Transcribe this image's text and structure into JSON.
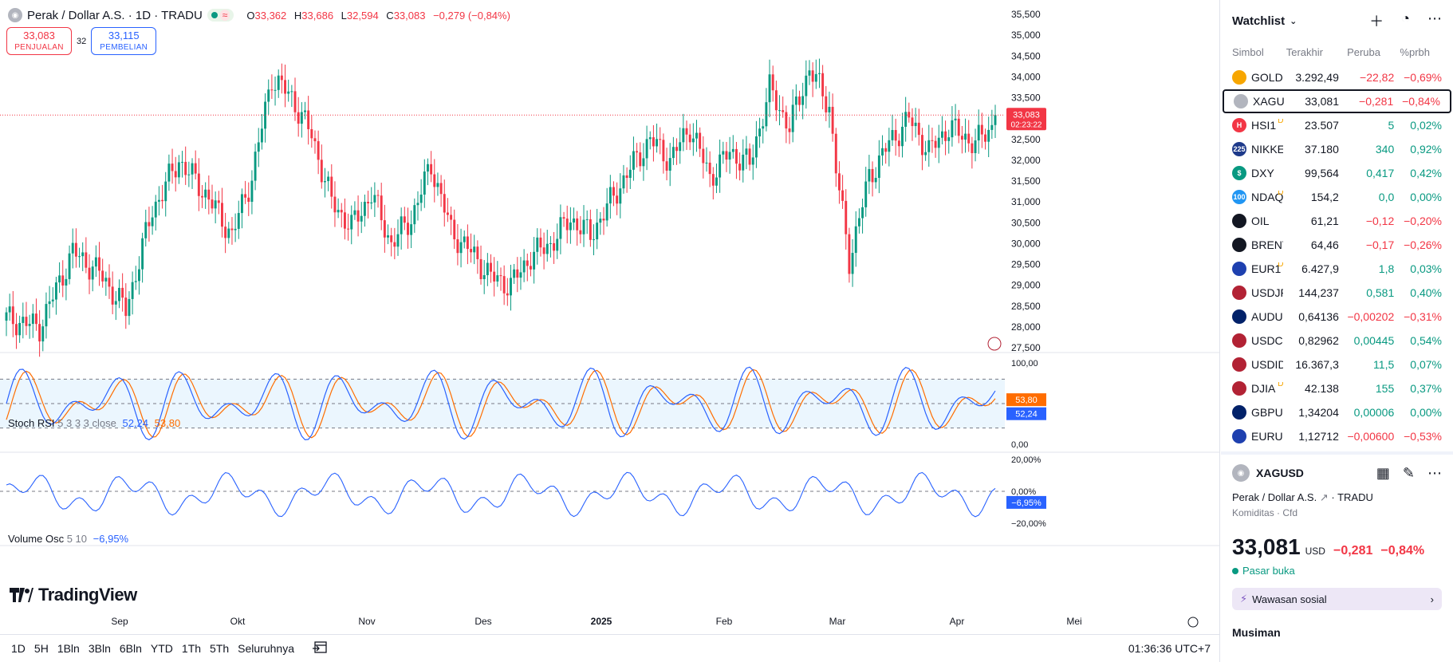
{
  "legend": {
    "title": "Perak / Dollar A.S. · 1D · TRADU",
    "open_k": "O",
    "open": "33,362",
    "high_k": "H",
    "high": "33,686",
    "low_k": "L",
    "low": "32,594",
    "close_k": "C",
    "close": "33,083",
    "change": "−0,279 (−0,84%)"
  },
  "trade": {
    "sell_price": "33,083",
    "sell_label": "PENJUALAN",
    "spread": "32",
    "buy_price": "33,115",
    "buy_label": "PEMBELIAN"
  },
  "price_axis": {
    "ticks": [
      "35,500",
      "35,000",
      "34,500",
      "34,000",
      "33,500",
      "33,000",
      "32,500",
      "32,000",
      "31,500",
      "31,000",
      "30,500",
      "30,000",
      "29,500",
      "29,000",
      "28,500",
      "28,000",
      "27,500"
    ],
    "last_price_label": "33,083",
    "countdown": "02:23:22"
  },
  "stoch_rsi": {
    "name": "Stoch RSI",
    "params": "5 3 3 3 close",
    "k_value": "52,24",
    "d_value": "53,80",
    "ticks": [
      "100,00",
      "0,00"
    ]
  },
  "volume_osc": {
    "name": "Volume Osc",
    "params": "5 10",
    "value": "−6,95%",
    "ticks": [
      "20,00%",
      "0,00%",
      "−20,00%"
    ]
  },
  "time_axis": {
    "labels": [
      "Sep",
      "Okt",
      "Nov",
      "Des",
      "2025",
      "Feb",
      "Mar",
      "Apr",
      "Mei"
    ]
  },
  "logo_text": "TradingView",
  "bottom_bar": {
    "ranges": [
      "1D",
      "5H",
      "1Bln",
      "3Bln",
      "6Bln",
      "YTD",
      "1Th",
      "5Th",
      "Seluruhnya"
    ],
    "clock": "01:36:36 UTC+7"
  },
  "colors": {
    "up": "#089981",
    "down": "#f23645",
    "k_line": "#2962ff",
    "d_line": "#ff6d00"
  },
  "watchlist": {
    "title": "Watchlist",
    "columns": [
      "Simbol",
      "Terakhir",
      "Peruba",
      "%prbh"
    ],
    "rows": [
      {
        "icon": "gold-icon",
        "color": "#f7a600",
        "badge": "",
        "symbol": "GOLD",
        "last": "3.292,49",
        "change": "−22,82",
        "pct": "−0,69%",
        "dir": "dn"
      },
      {
        "icon": "silver-icon",
        "color": "#b2b5be",
        "badge": "",
        "symbol": "XAGUSD",
        "last": "33,081",
        "change": "−0,281",
        "pct": "−0,84%",
        "dir": "dn",
        "selected": true
      },
      {
        "icon": "hsi-icon",
        "color": "#f23645",
        "badge": "H",
        "symbol": "HSI1",
        "sup": "D",
        "last": "23.507",
        "change": "5",
        "pct": "0,02%",
        "dir": "up"
      },
      {
        "icon": "nikkei-icon",
        "color": "#1e3a8a",
        "badge": "225",
        "symbol": "NIKKEI",
        "last": "37.180",
        "change": "340",
        "pct": "0,92%",
        "dir": "up"
      },
      {
        "icon": "dollar-icon",
        "color": "#089981",
        "badge": "$",
        "symbol": "DXY",
        "last": "99,564",
        "change": "0,417",
        "pct": "0,42%",
        "dir": "up"
      },
      {
        "icon": "nasdaq-icon",
        "color": "#2196f3",
        "badge": "100",
        "symbol": "NDAQ",
        "sup": "D",
        "last": "154,2",
        "change": "0,0",
        "pct": "0,00%",
        "dir": "up"
      },
      {
        "icon": "oil-drop-icon",
        "color": "#131722",
        "badge": "",
        "symbol": "OIL",
        "last": "61,21",
        "change": "−0,12",
        "pct": "−0,20%",
        "dir": "dn"
      },
      {
        "icon": "oil-drop-icon",
        "color": "#131722",
        "badge": "",
        "symbol": "BRENT",
        "last": "64,46",
        "change": "−0,17",
        "pct": "−0,26%",
        "dir": "dn"
      },
      {
        "icon": "eu-flag-icon",
        "color": "#1e40af",
        "badge": "",
        "symbol": "EUR1",
        "sup": "D",
        "last": "6.427,9",
        "change": "1,8",
        "pct": "0,03%",
        "dir": "up"
      },
      {
        "icon": "us-flag-icon",
        "color": "#b22234",
        "badge": "",
        "symbol": "USDJPY",
        "last": "144,237",
        "change": "0,581",
        "pct": "0,40%",
        "dir": "up"
      },
      {
        "icon": "au-flag-icon",
        "color": "#012169",
        "badge": "",
        "symbol": "AUDUSD",
        "last": "0,64136",
        "change": "−0,00202",
        "pct": "−0,31%",
        "dir": "dn"
      },
      {
        "icon": "us-flag-icon",
        "color": "#b22234",
        "badge": "",
        "symbol": "USDCHF",
        "last": "0,82962",
        "change": "0,00445",
        "pct": "0,54%",
        "dir": "up"
      },
      {
        "icon": "us-flag-icon",
        "color": "#b22234",
        "badge": "",
        "symbol": "USDIDR",
        "last": "16.367,3",
        "change": "11,5",
        "pct": "0,07%",
        "dir": "up"
      },
      {
        "icon": "us-flag-icon",
        "color": "#b22234",
        "badge": "",
        "symbol": "DJIA",
        "sup": "D",
        "last": "42.138",
        "change": "155",
        "pct": "0,37%",
        "dir": "up"
      },
      {
        "icon": "gb-flag-icon",
        "color": "#012169",
        "badge": "",
        "symbol": "GBPUSD",
        "last": "1,34204",
        "change": "0,00006",
        "pct": "0,00%",
        "dir": "up"
      },
      {
        "icon": "eu-flag-icon",
        "color": "#1e40af",
        "badge": "",
        "symbol": "EURUSD",
        "last": "1,12712",
        "change": "−0,00600",
        "pct": "−0,53%",
        "dir": "dn"
      }
    ]
  },
  "details": {
    "symbol": "XAGUSD",
    "name": "Perak / Dollar A.S.",
    "exchange": "TRADU",
    "category": "Komiditas · Cfd",
    "price": "33,081",
    "currency": "USD",
    "change": "−0,281",
    "change_pct": "−0,84%",
    "status": "Pasar buka",
    "social": "Wawasan sosial",
    "seasonal": "Musiman"
  }
}
